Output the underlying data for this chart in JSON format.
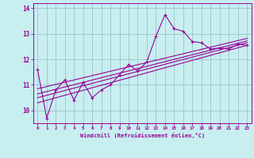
{
  "xlabel": "Windchill (Refroidissement éolien,°C)",
  "ylabel": "",
  "background_color": "#c8eef0",
  "grid_color": "#a0c8d0",
  "line_color": "#990099",
  "x_hours": [
    0,
    1,
    2,
    3,
    4,
    5,
    6,
    7,
    8,
    9,
    10,
    11,
    12,
    13,
    14,
    15,
    16,
    17,
    18,
    19,
    20,
    21,
    22,
    23
  ],
  "y_main": [
    11.6,
    9.7,
    10.8,
    11.2,
    10.4,
    11.1,
    10.5,
    10.8,
    11.0,
    11.4,
    11.8,
    11.55,
    11.9,
    12.9,
    13.75,
    13.2,
    13.1,
    12.7,
    12.65,
    12.4,
    12.45,
    12.4,
    12.6,
    12.55
  ],
  "ylim": [
    9.5,
    14.2
  ],
  "yticks": [
    10,
    11,
    12,
    13,
    14
  ],
  "xlim": [
    -0.5,
    23.5
  ],
  "xticks": [
    0,
    1,
    2,
    3,
    4,
    5,
    6,
    7,
    8,
    9,
    10,
    11,
    12,
    13,
    14,
    15,
    16,
    17,
    18,
    19,
    20,
    21,
    22,
    23
  ],
  "trend_lines": [
    [
      10.3,
      12.55
    ],
    [
      10.5,
      12.65
    ],
    [
      10.65,
      12.72
    ],
    [
      10.85,
      12.82
    ]
  ]
}
